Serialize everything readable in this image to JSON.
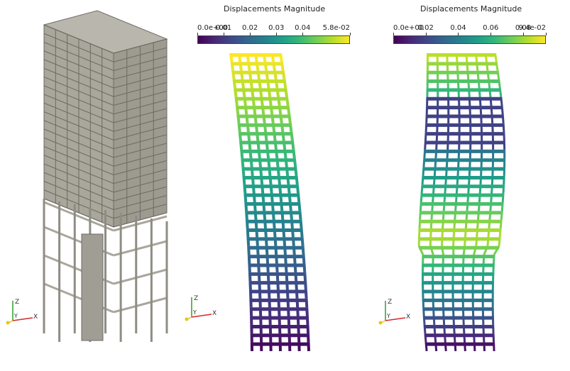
{
  "panels": [
    {
      "id": "undeformed",
      "colorbar": null
    },
    {
      "id": "mode-1",
      "colorbar": {
        "title": "Displacements Magnitude",
        "ticks": [
          "0.0e+00",
          "0.01",
          "0.02",
          "0.03",
          "0.04",
          "5.8e-02"
        ],
        "tick_values": [
          0,
          0.01,
          0.02,
          0.03,
          0.04,
          0.058
        ],
        "range": [
          0,
          0.058
        ]
      }
    },
    {
      "id": "mode-2",
      "colorbar": {
        "title": "Displacements Magnitude",
        "ticks": [
          "0.0e+00",
          "0.02",
          "0.04",
          "0.06",
          "0.08",
          "9.4e-02"
        ],
        "tick_values": [
          0,
          0.02,
          0.04,
          0.06,
          0.08,
          0.094
        ],
        "range": [
          0,
          0.094
        ]
      }
    }
  ],
  "axes_triad": {
    "z_label": "Z",
    "y_label": "Y",
    "x_label": "X",
    "colors": {
      "x": "#d62728",
      "y": "#e6c619",
      "z": "#2ca02c"
    }
  },
  "colormap": "viridis",
  "colors": {
    "structure": "#a9a69c",
    "structure_edge": "#6d6b63",
    "background": "#ffffff"
  }
}
